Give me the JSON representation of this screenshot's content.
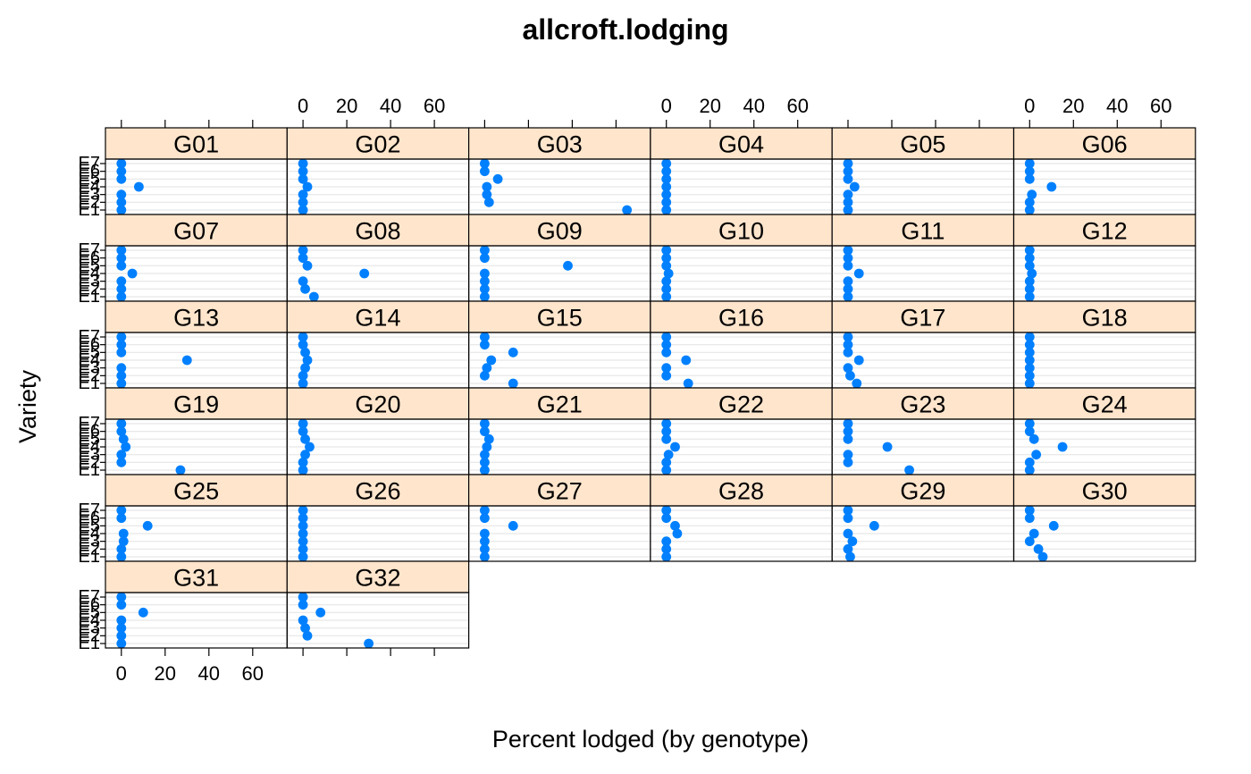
{
  "chart_data": {
    "type": "dotplot",
    "title": "allcroft.lodging",
    "xlabel": "Percent lodged (by genotype)",
    "ylabel": "Variety",
    "xlim": [
      -4,
      70
    ],
    "xticks": [
      0,
      20,
      40,
      60
    ],
    "xtick_labels": [
      "0",
      "20",
      "40",
      "60"
    ],
    "ytick_labels": [
      "E1",
      "E2",
      "E3",
      "E4",
      "E5",
      "E6",
      "E7"
    ],
    "layout": "6 columns x 6 rows",
    "colors": {
      "point": "#0080ff",
      "strip_fill": "#ffe5cc",
      "frame": "#000000",
      "grid": "#e6e6e6"
    },
    "panels": [
      {
        "name": "G01",
        "values": [
          0,
          0,
          0,
          8,
          0,
          0,
          0
        ]
      },
      {
        "name": "G02",
        "values": [
          0,
          0,
          0,
          2,
          0,
          0,
          0
        ]
      },
      {
        "name": "G03",
        "values": [
          65,
          2,
          1,
          1,
          6,
          0,
          0
        ]
      },
      {
        "name": "G04",
        "values": [
          0,
          0,
          0,
          0,
          0,
          0,
          0
        ]
      },
      {
        "name": "G05",
        "values": [
          0,
          0,
          0,
          3,
          0,
          0,
          0
        ]
      },
      {
        "name": "G06",
        "values": [
          0,
          0,
          1,
          10,
          0,
          0,
          0
        ]
      },
      {
        "name": "G07",
        "values": [
          0,
          0,
          0,
          5,
          0,
          0,
          0
        ]
      },
      {
        "name": "G08",
        "values": [
          5,
          1,
          0,
          28,
          2,
          0,
          0
        ]
      },
      {
        "name": "G09",
        "values": [
          0,
          0,
          0,
          0,
          38,
          0,
          0
        ]
      },
      {
        "name": "G10",
        "values": [
          0,
          0,
          0,
          1,
          0,
          0,
          0
        ]
      },
      {
        "name": "G11",
        "values": [
          0,
          0,
          0,
          5,
          0,
          0,
          0
        ]
      },
      {
        "name": "G12",
        "values": [
          0,
          0,
          0,
          1,
          0,
          0,
          0
        ]
      },
      {
        "name": "G13",
        "values": [
          0,
          0,
          0,
          30,
          0,
          0,
          0
        ]
      },
      {
        "name": "G14",
        "values": [
          0,
          0,
          1,
          2,
          1,
          0,
          0
        ]
      },
      {
        "name": "G15",
        "values": [
          13,
          0,
          1,
          3,
          13,
          0,
          0
        ]
      },
      {
        "name": "G16",
        "values": [
          10,
          0,
          0,
          9,
          0,
          0,
          0
        ]
      },
      {
        "name": "G17",
        "values": [
          4,
          1,
          0,
          5,
          0,
          0,
          0
        ]
      },
      {
        "name": "G18",
        "values": [
          0,
          0,
          0,
          0,
          0,
          0,
          0
        ]
      },
      {
        "name": "G19",
        "values": [
          27,
          0,
          0,
          2,
          1,
          0,
          0
        ]
      },
      {
        "name": "G20",
        "values": [
          0,
          0,
          1,
          3,
          1,
          0,
          0
        ]
      },
      {
        "name": "G21",
        "values": [
          0,
          0,
          0,
          1,
          2,
          0,
          0
        ]
      },
      {
        "name": "G22",
        "values": [
          0,
          0,
          1,
          4,
          0,
          0,
          0
        ]
      },
      {
        "name": "G23",
        "values": [
          28,
          0,
          0,
          18,
          0,
          0,
          0
        ]
      },
      {
        "name": "G24",
        "values": [
          0,
          0,
          3,
          15,
          2,
          0,
          0
        ]
      },
      {
        "name": "G25",
        "values": [
          0,
          0,
          1,
          1,
          12,
          0,
          0
        ]
      },
      {
        "name": "G26",
        "values": [
          0,
          0,
          0,
          0,
          0,
          0,
          0
        ]
      },
      {
        "name": "G27",
        "values": [
          0,
          0,
          0,
          0,
          13,
          0,
          0
        ]
      },
      {
        "name": "G28",
        "values": [
          0,
          0,
          0,
          5,
          4,
          0,
          0
        ]
      },
      {
        "name": "G29",
        "values": [
          1,
          0,
          2,
          0,
          12,
          0,
          0
        ]
      },
      {
        "name": "G30",
        "values": [
          6,
          4,
          0,
          2,
          11,
          0,
          0
        ]
      },
      {
        "name": "G31",
        "values": [
          0,
          0,
          0,
          0,
          10,
          0,
          0
        ]
      },
      {
        "name": "G32",
        "values": [
          30,
          2,
          1,
          0,
          8,
          0,
          0
        ]
      }
    ]
  }
}
